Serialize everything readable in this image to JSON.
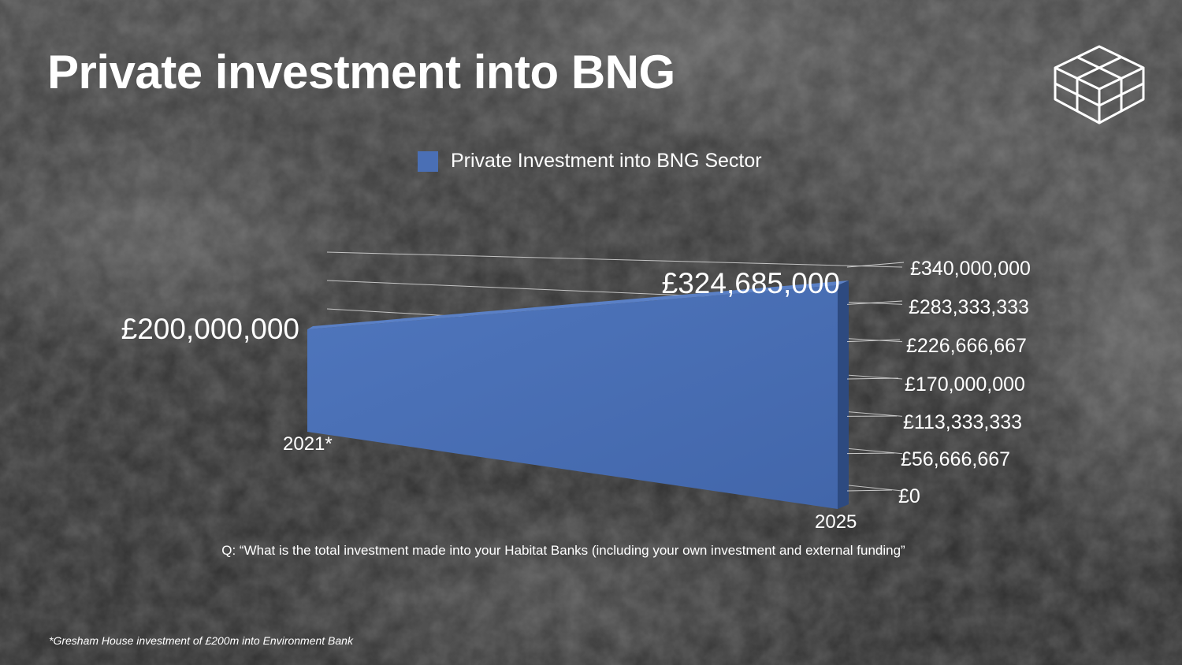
{
  "slide": {
    "title": "Private investment into BNG",
    "logo": "cube-grid-logo",
    "question": "Q: “What is the total investment made into your Habitat Banks (including your own investment and external funding”",
    "footnote": "*Gresham House investment of £200m into Environment Bank"
  },
  "colors": {
    "series": "#4a6fb5",
    "series_dark": "#2d4a80",
    "text": "#ffffff",
    "gridline": "#d8d8d8"
  },
  "chart_data": {
    "type": "area",
    "title": "",
    "categories": [
      "2021*",
      "2025"
    ],
    "series": [
      {
        "name": "Private Investment into BNG Sector",
        "values": [
          200000000,
          324685000
        ],
        "labels": [
          "£200,000,000",
          "£324,685,000"
        ]
      }
    ],
    "ylim": [
      0,
      340000000
    ],
    "yticks": [
      0,
      56666667,
      113333333,
      170000000,
      226666667,
      283333333,
      340000000
    ],
    "ytick_labels": [
      "£0",
      "£56,666,667",
      "£113,333,333",
      "£170,000,000",
      "£226,666,667",
      "£283,333,333",
      "£340,000,000"
    ],
    "grid": true,
    "legend": "top",
    "view": "3d-perspective"
  }
}
